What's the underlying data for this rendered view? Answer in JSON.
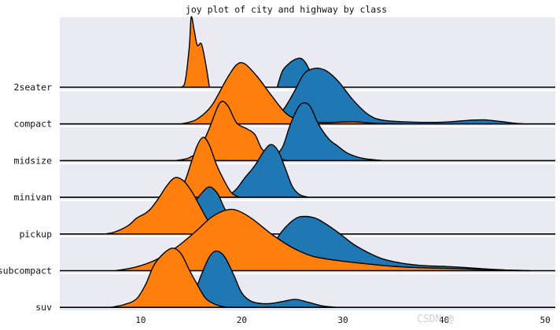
{
  "chart_data": {
    "type": "area",
    "title": "joy plot of city and highway by class",
    "xlabel": "",
    "ylabel": "",
    "xlim": [
      2,
      51
    ],
    "xticks": [
      10,
      20,
      30,
      40,
      50
    ],
    "categories": [
      "2seater",
      "compact",
      "midsize",
      "minivan",
      "pickup",
      "subcompact",
      "suv"
    ],
    "series": [
      {
        "name": "",
        "color": "#ff7f0e"
      },
      {
        "name": "",
        "color": "#1f77b4"
      }
    ],
    "densities": [
      {
        "class": "2seater",
        "city": [
          [
            14.0,
            0
          ],
          [
            14.4,
            0.08
          ],
          [
            14.8,
            0.55
          ],
          [
            15.0,
            0.97
          ],
          [
            15.3,
            0.78
          ],
          [
            15.6,
            0.58
          ],
          [
            16.0,
            0.6
          ],
          [
            16.4,
            0.35
          ],
          [
            16.8,
            0
          ]
        ],
        "highway": [
          [
            23.5,
            0
          ],
          [
            24.0,
            0.22
          ],
          [
            24.6,
            0.32
          ],
          [
            25.2,
            0.38
          ],
          [
            25.8,
            0.4
          ],
          [
            26.3,
            0.34
          ],
          [
            26.8,
            0.2
          ],
          [
            27.4,
            0
          ]
        ]
      },
      {
        "class": "compact",
        "city": [
          [
            14.0,
            0
          ],
          [
            15.5,
            0.06
          ],
          [
            17.0,
            0.25
          ],
          [
            18.5,
            0.62
          ],
          [
            19.5,
            0.82
          ],
          [
            20.3,
            0.83
          ],
          [
            21.5,
            0.66
          ],
          [
            23.0,
            0.38
          ],
          [
            24.5,
            0.13
          ],
          [
            26.0,
            0.05
          ],
          [
            28.0,
            0.02
          ],
          [
            31.0,
            0.03
          ],
          [
            33.0,
            0.01
          ],
          [
            36.0,
            0
          ]
        ],
        "highway": [
          [
            21.0,
            0
          ],
          [
            22.5,
            0.04
          ],
          [
            24.0,
            0.18
          ],
          [
            25.2,
            0.45
          ],
          [
            26.2,
            0.7
          ],
          [
            27.3,
            0.77
          ],
          [
            28.4,
            0.73
          ],
          [
            29.6,
            0.58
          ],
          [
            31.0,
            0.33
          ],
          [
            32.5,
            0.13
          ],
          [
            34.0,
            0.05
          ],
          [
            37.0,
            0.025
          ],
          [
            40.0,
            0.025
          ],
          [
            42.5,
            0.05
          ],
          [
            44.0,
            0.055
          ],
          [
            45.5,
            0.035
          ],
          [
            47.0,
            0.01
          ],
          [
            48.0,
            0
          ]
        ]
      },
      {
        "class": "midsize",
        "city": [
          [
            13.5,
            0
          ],
          [
            14.8,
            0.04
          ],
          [
            15.8,
            0.15
          ],
          [
            16.8,
            0.45
          ],
          [
            17.6,
            0.74
          ],
          [
            18.1,
            0.82
          ],
          [
            18.7,
            0.74
          ],
          [
            19.5,
            0.52
          ],
          [
            20.5,
            0.44
          ],
          [
            21.3,
            0.36
          ],
          [
            22.0,
            0.16
          ],
          [
            23.0,
            0.05
          ],
          [
            24.5,
            0
          ]
        ],
        "highway": [
          [
            21.5,
            0
          ],
          [
            23.0,
            0.05
          ],
          [
            24.0,
            0.18
          ],
          [
            24.8,
            0.5
          ],
          [
            25.6,
            0.74
          ],
          [
            26.2,
            0.8
          ],
          [
            26.8,
            0.74
          ],
          [
            27.6,
            0.5
          ],
          [
            28.6,
            0.3
          ],
          [
            29.5,
            0.2
          ],
          [
            30.5,
            0.1
          ],
          [
            32.0,
            0.03
          ],
          [
            34.0,
            0
          ]
        ],
        "note": ""
      },
      {
        "class": "minivan",
        "city": [
          [
            12.5,
            0
          ],
          [
            13.5,
            0.06
          ],
          [
            14.3,
            0.2
          ],
          [
            15.0,
            0.48
          ],
          [
            15.6,
            0.72
          ],
          [
            16.2,
            0.83
          ],
          [
            16.8,
            0.72
          ],
          [
            17.5,
            0.45
          ],
          [
            18.3,
            0.22
          ],
          [
            19.0,
            0.06
          ],
          [
            19.8,
            0
          ]
        ],
        "highway": [
          [
            17.8,
            0
          ],
          [
            18.8,
            0.04
          ],
          [
            19.5,
            0.12
          ],
          [
            20.3,
            0.27
          ],
          [
            21.3,
            0.44
          ],
          [
            22.2,
            0.64
          ],
          [
            22.9,
            0.73
          ],
          [
            23.6,
            0.64
          ],
          [
            24.3,
            0.4
          ],
          [
            25.0,
            0.15
          ],
          [
            25.7,
            0.04
          ],
          [
            26.6,
            0
          ]
        ]
      },
      {
        "class": "pickup",
        "city": [
          [
            6.5,
            0
          ],
          [
            7.5,
            0.03
          ],
          [
            8.8,
            0.12
          ],
          [
            9.6,
            0.22
          ],
          [
            10.4,
            0.28
          ],
          [
            11.0,
            0.35
          ],
          [
            11.8,
            0.5
          ],
          [
            12.6,
            0.67
          ],
          [
            13.4,
            0.78
          ],
          [
            14.2,
            0.74
          ],
          [
            15.0,
            0.6
          ],
          [
            15.8,
            0.4
          ],
          [
            16.6,
            0.2
          ],
          [
            17.5,
            0.06
          ],
          [
            18.6,
            0
          ]
        ],
        "highway": [
          [
            11.0,
            0
          ],
          [
            12.0,
            0.04
          ],
          [
            13.0,
            0.12
          ],
          [
            14.0,
            0.24
          ],
          [
            15.0,
            0.38
          ],
          [
            16.0,
            0.56
          ],
          [
            16.8,
            0.65
          ],
          [
            17.6,
            0.56
          ],
          [
            18.2,
            0.38
          ],
          [
            18.9,
            0.2
          ],
          [
            19.8,
            0.07
          ],
          [
            21.0,
            0
          ]
        ]
      },
      {
        "class": "subcompact",
        "city": [
          [
            7.5,
            0
          ],
          [
            9.5,
            0.05
          ],
          [
            11.5,
            0.15
          ],
          [
            13.5,
            0.32
          ],
          [
            15.5,
            0.55
          ],
          [
            17.0,
            0.74
          ],
          [
            18.5,
            0.84
          ],
          [
            19.6,
            0.83
          ],
          [
            21.0,
            0.72
          ],
          [
            23.0,
            0.5
          ],
          [
            25.0,
            0.32
          ],
          [
            27.0,
            0.2
          ],
          [
            29.5,
            0.14
          ],
          [
            32.0,
            0.1
          ],
          [
            35.0,
            0.06
          ],
          [
            38.0,
            0.04
          ],
          [
            41.0,
            0.03
          ],
          [
            44.0,
            0.015
          ],
          [
            47.0,
            0.005
          ],
          [
            48.5,
            0
          ]
        ],
        "highway": [
          [
            17.0,
            0
          ],
          [
            19.0,
            0.05
          ],
          [
            21.0,
            0.12
          ],
          [
            22.5,
            0.25
          ],
          [
            24.0,
            0.55
          ],
          [
            25.3,
            0.72
          ],
          [
            26.3,
            0.75
          ],
          [
            27.4,
            0.72
          ],
          [
            28.6,
            0.62
          ],
          [
            29.8,
            0.5
          ],
          [
            31.0,
            0.37
          ],
          [
            32.5,
            0.25
          ],
          [
            34.0,
            0.16
          ],
          [
            36.0,
            0.1
          ],
          [
            38.0,
            0.07
          ],
          [
            40.0,
            0.06
          ],
          [
            42.0,
            0.045
          ],
          [
            44.0,
            0.025
          ],
          [
            46.0,
            0.01
          ],
          [
            47.5,
            0
          ]
        ]
      },
      {
        "class": "suv",
        "city": [
          [
            7.0,
            0
          ],
          [
            8.4,
            0.04
          ],
          [
            9.6,
            0.12
          ],
          [
            10.5,
            0.32
          ],
          [
            11.3,
            0.58
          ],
          [
            12.3,
            0.75
          ],
          [
            13.2,
            0.82
          ],
          [
            14.0,
            0.74
          ],
          [
            14.8,
            0.52
          ],
          [
            15.5,
            0.34
          ],
          [
            16.4,
            0.13
          ],
          [
            17.4,
            0.04
          ],
          [
            18.5,
            0
          ]
        ],
        "highway": [
          [
            13.0,
            0
          ],
          [
            14.2,
            0.04
          ],
          [
            15.2,
            0.18
          ],
          [
            16.0,
            0.45
          ],
          [
            16.8,
            0.7
          ],
          [
            17.5,
            0.78
          ],
          [
            18.3,
            0.7
          ],
          [
            19.2,
            0.45
          ],
          [
            20.0,
            0.2
          ],
          [
            21.0,
            0.08
          ],
          [
            22.5,
            0.05
          ],
          [
            24.0,
            0.08
          ],
          [
            25.3,
            0.11
          ],
          [
            26.6,
            0.07
          ],
          [
            28.0,
            0.02
          ],
          [
            29.5,
            0
          ]
        ]
      }
    ]
  },
  "watermark": "CSDN @"
}
